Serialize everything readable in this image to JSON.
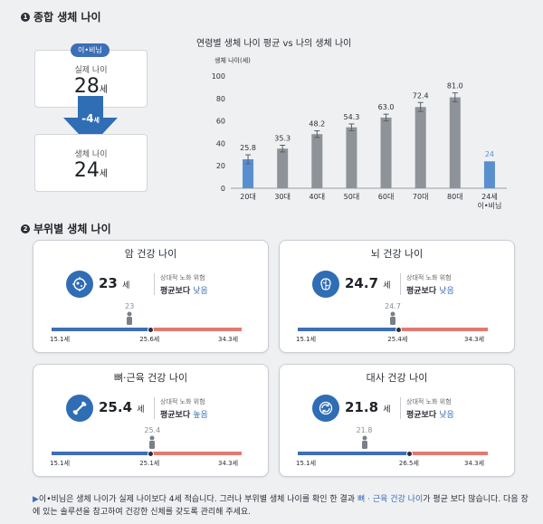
{
  "section1": {
    "number": "1",
    "title": "종합 생체 나이"
  },
  "summary": {
    "pill": "이•비님",
    "actual_label": "실제 나이",
    "actual_value": "28",
    "unit": "세",
    "diff_value": "-4",
    "bio_label": "생체 나이",
    "bio_value": "24"
  },
  "chart_data": {
    "type": "bar",
    "title": "연령별 생체 나이 평균 vs 나의 생체 나이",
    "ylabel": "생체 나이(세)",
    "ylim": [
      0,
      100
    ],
    "yticks": [
      0,
      20,
      40,
      60,
      80,
      100
    ],
    "categories": [
      "20대",
      "30대",
      "40대",
      "50대",
      "60대",
      "70대",
      "80대",
      "24세\n이•비님"
    ],
    "values": [
      25.8,
      35.3,
      48.2,
      54.3,
      63.0,
      72.4,
      81.0,
      24
    ],
    "value_labels": [
      "25.8",
      "35.3",
      "48.2",
      "54.3",
      "63.0",
      "72.4",
      "81.0",
      "24"
    ],
    "error": [
      4,
      3,
      3,
      3,
      3,
      4,
      4,
      0
    ],
    "highlight": [
      0,
      7
    ],
    "colors": {
      "highlight": "#5a8fcf",
      "normal": "#8d9399",
      "error": "#5a5f66"
    }
  },
  "section2": {
    "number": "2",
    "title": "부위별 생체 나이"
  },
  "cards": [
    {
      "title": "암 건강 나이",
      "value": "23",
      "unit": "세",
      "risk_label": "상대적 노화 위험",
      "risk_prefix": "평균보다",
      "risk_word": "낮음",
      "marker": "23",
      "min": "15.1세",
      "avg": "25.6세",
      "max": "34.3세",
      "marker_frac": 0.41,
      "avg_frac": 0.52,
      "icon": "cell-icon"
    },
    {
      "title": "뇌 건강 나이",
      "value": "24.7",
      "unit": "세",
      "risk_label": "상대적 노화 위험",
      "risk_prefix": "평균보다",
      "risk_word": "낮음",
      "marker": "24.7",
      "min": "15.1세",
      "avg": "25.4세",
      "max": "34.3세",
      "marker_frac": 0.5,
      "avg_frac": 0.53,
      "icon": "brain-icon"
    },
    {
      "title": "뼈·근육 건강 나이",
      "value": "25.4",
      "unit": "세",
      "risk_label": "상대적 노화 위험",
      "risk_prefix": "평균보다",
      "risk_word": "높음",
      "marker": "25.4",
      "min": "15.1세",
      "avg": "25.1세",
      "max": "34.3세",
      "marker_frac": 0.53,
      "avg_frac": 0.52,
      "icon": "bone-icon"
    },
    {
      "title": "대사 건강 나이",
      "value": "21.8",
      "unit": "세",
      "risk_label": "상대적 노화 위험",
      "risk_prefix": "평균보다",
      "risk_word": "낮음",
      "marker": "21.8",
      "min": "15.1세",
      "avg": "26.5세",
      "max": "34.3세",
      "marker_frac": 0.35,
      "avg_frac": 0.59,
      "icon": "metabolism-icon"
    }
  ],
  "footer": {
    "bullet": "▶",
    "t1": "이•비님은 생체 나이가 실제 나이보다 4세 적습니다. 그러나 부위별 생체 나이를 확인 한 결과 ",
    "t2": "뼈 · 근육 건강 나이",
    "t3": "가 평균 보다 많습니다. 다음 장에 있는 솔루션을 참고하여 건강한 신체를 갖도록 관리해 주세요."
  }
}
